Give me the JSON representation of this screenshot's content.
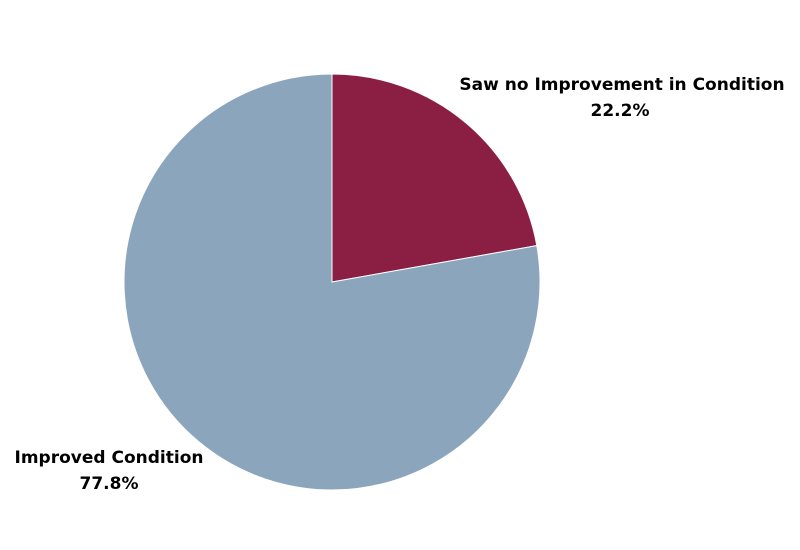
{
  "chart_data": {
    "type": "pie",
    "title": "",
    "start_angle_deg": 0,
    "direction": "clockwise",
    "slices": [
      {
        "label": "Saw no Improvement in Condition",
        "value": 22.2,
        "value_label": "22.2%",
        "color": "#8b1e43"
      },
      {
        "label": "Improved Condition",
        "value": 77.8,
        "value_label": "77.8%",
        "color": "#8ba5bd"
      }
    ]
  }
}
